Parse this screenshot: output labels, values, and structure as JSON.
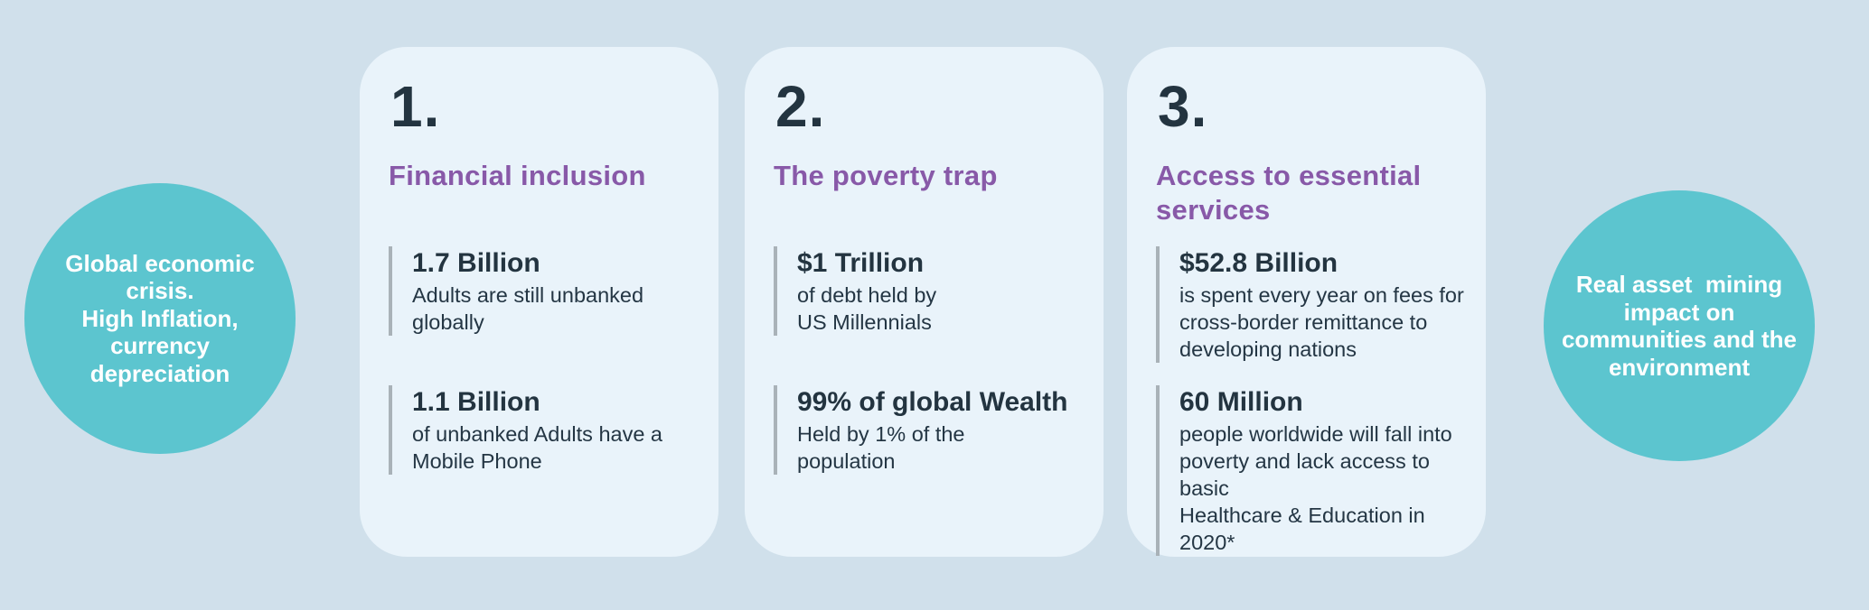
{
  "colors": {
    "background": "#d0e0eb",
    "card_background": "#e9f3fa",
    "bubble_teal": "#5cc5cf",
    "heading_purple": "#8859a8",
    "text_dark_navy": "#233440",
    "stat_bar_gray": "#a9b2b8",
    "bubble_text": "#ffffff"
  },
  "left_bubble": {
    "text": "Global economic\ncrisis.\nHigh Inflation,\ncurrency\ndepreciation"
  },
  "right_bubble": {
    "text": "Real asset  mining\nimpact on\ncommunities and the\nenvironment"
  },
  "cards": [
    {
      "number": "1.",
      "title": "Financial inclusion",
      "stats": [
        {
          "value": "1.7 Billion",
          "desc": "Adults are still unbanked\nglobally"
        },
        {
          "value": "1.1 Billion",
          "desc": "of unbanked Adults have a\nMobile Phone"
        }
      ]
    },
    {
      "number": "2.",
      "title": "The poverty trap",
      "stats": [
        {
          "value": "$1 Trillion",
          "desc": "of debt held by\nUS Millennials"
        },
        {
          "value": "99% of global Wealth",
          "desc": "Held by 1% of the\npopulation"
        }
      ]
    },
    {
      "number": "3.",
      "title": "Access to essential\nservices",
      "stats": [
        {
          "value": "$52.8 Billion",
          "desc": "is spent every year on fees for\ncross-border remittance to\ndeveloping nations"
        },
        {
          "value": "60 Million",
          "desc": "people worldwide will fall into\npoverty and lack access to basic\nHealthcare & Education in 2020*"
        }
      ]
    }
  ]
}
